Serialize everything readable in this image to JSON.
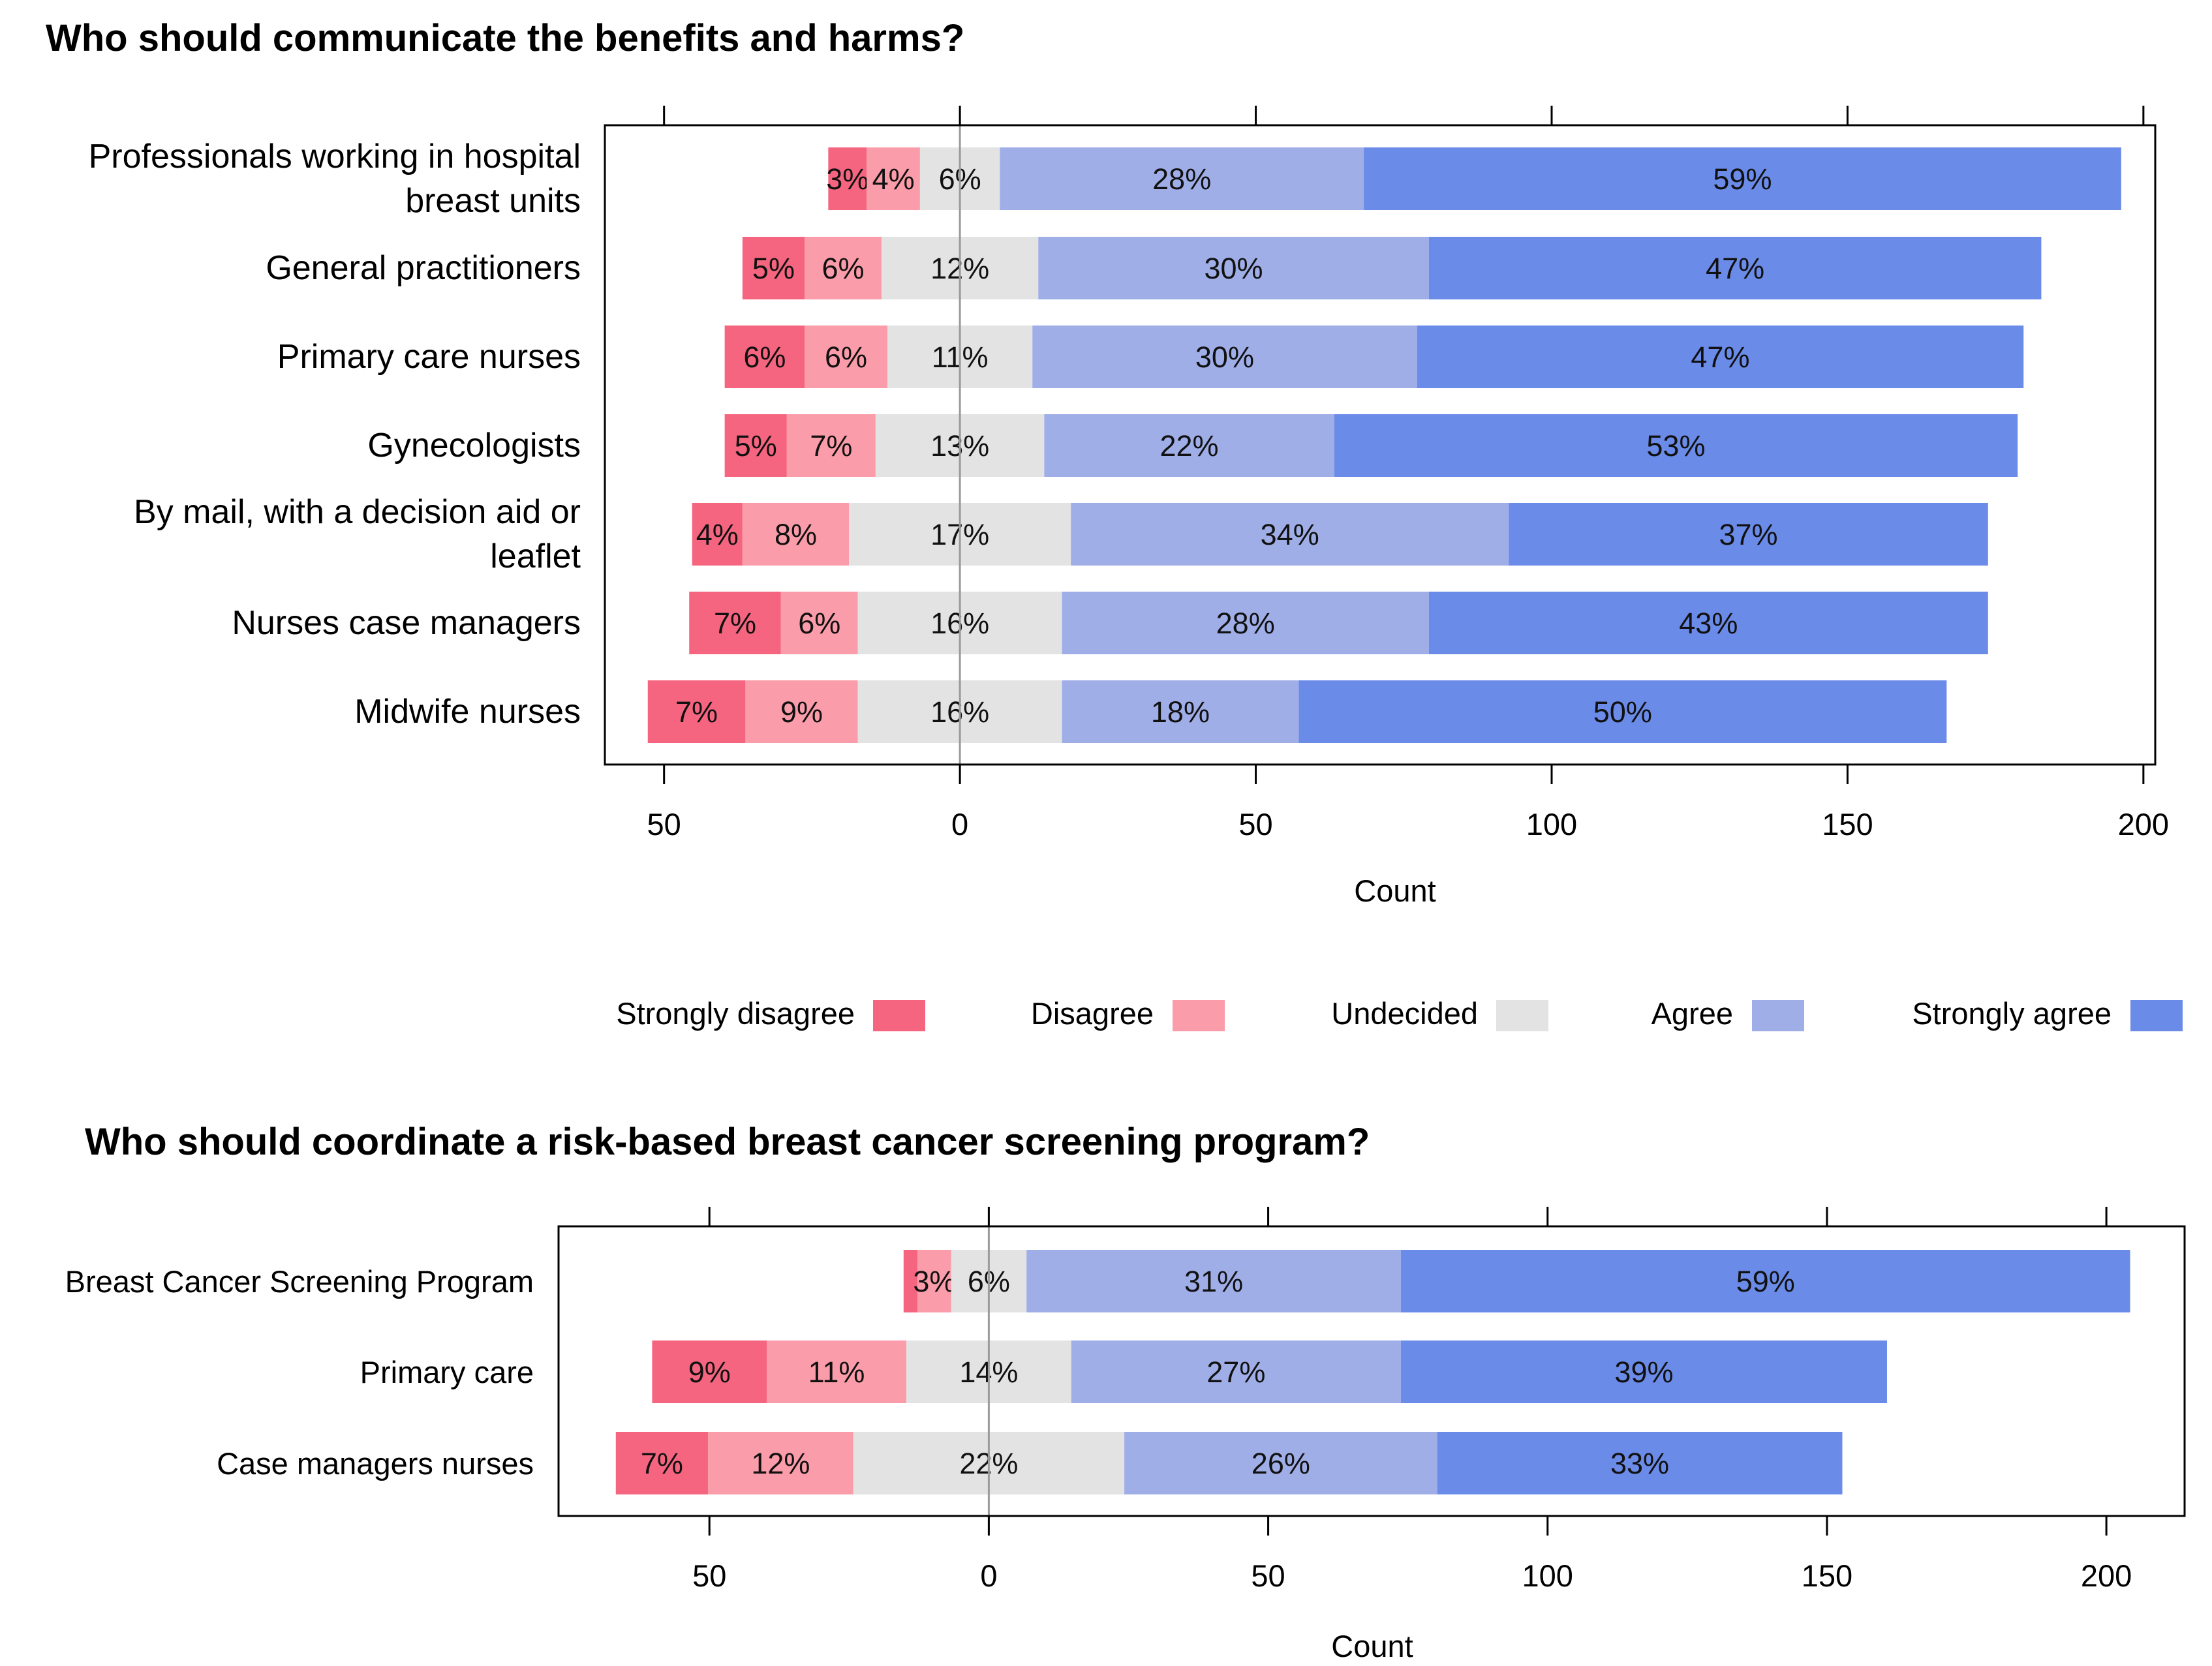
{
  "colors": {
    "Strongly disagree": "#f5657f",
    "Disagree": "#fa9ca9",
    "Undecided": "#e3e3e3",
    "Agree": "#a0aee8",
    "Strongly agree": "#6b8be8",
    "frame": "#000000",
    "zero_line": "#9b9b9b"
  },
  "legend": {
    "items": [
      "Strongly disagree",
      "Disagree",
      "Undecided",
      "Agree",
      "Strongly agree"
    ]
  },
  "chart_data": [
    {
      "type": "diverging-stacked-bar",
      "title": "Who should communicate the benefits and harms?",
      "xlabel": "Count",
      "xlim": [
        -60,
        202
      ],
      "xticks": [
        -50,
        0,
        50,
        100,
        150,
        200
      ],
      "xtick_labels": [
        "50",
        "0",
        "50",
        "100",
        "150",
        "200"
      ],
      "levels": [
        "Strongly disagree",
        "Disagree",
        "Undecided",
        "Agree",
        "Strongly agree"
      ],
      "rows": [
        {
          "label": [
            "Professionals working in hospital",
            "breast units"
          ],
          "counts": [
            6.5,
            9,
            13.5,
            61.5,
            128
          ],
          "percent_labels": [
            "3%",
            "4%",
            "6%",
            "28%",
            "59%"
          ]
        },
        {
          "label": [
            "General practitioners"
          ],
          "counts": [
            10.5,
            13,
            26.5,
            66,
            103.5
          ],
          "percent_labels": [
            "5%",
            "6%",
            "12%",
            "30%",
            "47%"
          ]
        },
        {
          "label": [
            "Primary care nurses"
          ],
          "counts": [
            13.5,
            14,
            24.5,
            65,
            102.5
          ],
          "percent_labels": [
            "6%",
            "6%",
            "11%",
            "30%",
            "47%"
          ]
        },
        {
          "label": [
            "Gynecologists"
          ],
          "counts": [
            10.5,
            15,
            28.5,
            49,
            115.5
          ],
          "percent_labels": [
            "5%",
            "7%",
            "13%",
            "22%",
            "53%"
          ]
        },
        {
          "label": [
            "By mail, with a decision aid or",
            "leaflet"
          ],
          "counts": [
            8.5,
            18,
            37.5,
            74,
            81
          ],
          "percent_labels": [
            "4%",
            "8%",
            "17%",
            "34%",
            "37%"
          ]
        },
        {
          "label": [
            "Nurses case managers"
          ],
          "counts": [
            15.5,
            13,
            34.5,
            62,
            94.5
          ],
          "percent_labels": [
            "7%",
            "6%",
            "16%",
            "28%",
            "43%"
          ]
        },
        {
          "label": [
            "Midwife nurses"
          ],
          "counts": [
            16.5,
            19,
            34.5,
            40,
            109.5
          ],
          "percent_labels": [
            "7%",
            "9%",
            "16%",
            "18%",
            "50%"
          ]
        }
      ]
    },
    {
      "type": "diverging-stacked-bar",
      "title": "Who should coordinate a risk-based breast cancer screening program?",
      "xlabel": "Count",
      "xlim": [
        -77,
        214
      ],
      "xticks": [
        -50,
        0,
        50,
        100,
        150,
        200
      ],
      "xtick_labels": [
        "50",
        "0",
        "50",
        "100",
        "150",
        "200"
      ],
      "levels": [
        "Strongly disagree",
        "Disagree",
        "Undecided",
        "Agree",
        "Strongly agree"
      ],
      "rows": [
        {
          "label": [
            "Breast Cancer Screening Program"
          ],
          "counts": [
            2.5,
            6,
            13.5,
            67,
            130.5
          ],
          "percent_labels": [
            "",
            "3%",
            "6%",
            "31%",
            "59%"
          ]
        },
        {
          "label": [
            "Primary care"
          ],
          "counts": [
            20.5,
            25,
            29.5,
            59,
            87
          ],
          "percent_labels": [
            "9%",
            "11%",
            "14%",
            "27%",
            "39%"
          ]
        },
        {
          "label": [
            "Case managers nurses"
          ],
          "counts": [
            16.5,
            26,
            48.5,
            56,
            72.5
          ],
          "percent_labels": [
            "7%",
            "12%",
            "22%",
            "26%",
            "33%"
          ]
        }
      ]
    }
  ]
}
